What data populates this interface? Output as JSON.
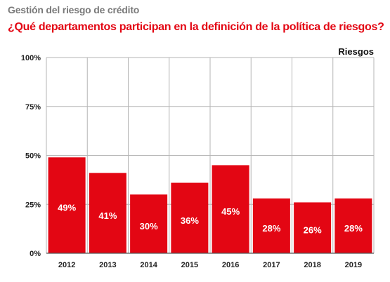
{
  "header": {
    "subtitle": "Gestión del riesgo de crédito",
    "title": "¿Qué departamentos participan en la definición de la política de riesgos?"
  },
  "colors": {
    "bar": "#e30613",
    "grid": "#b5b5b5",
    "title": "#e30613"
  },
  "chart_data": {
    "type": "bar",
    "series_label": "Riesgos",
    "categories": [
      "2012",
      "2013",
      "2014",
      "2015",
      "2016",
      "2017",
      "2018",
      "2019"
    ],
    "values": [
      49,
      41,
      30,
      36,
      45,
      28,
      26,
      28
    ],
    "value_labels": [
      "49%",
      "41%",
      "30%",
      "36%",
      "45%",
      "28%",
      "26%",
      "28%"
    ],
    "ylim": [
      0,
      100
    ],
    "yticks": [
      0,
      25,
      50,
      75,
      100
    ],
    "ytick_labels": [
      "0%",
      "25%",
      "50%",
      "75%",
      "100%"
    ],
    "grid": true,
    "xlabel": "",
    "ylabel": ""
  }
}
